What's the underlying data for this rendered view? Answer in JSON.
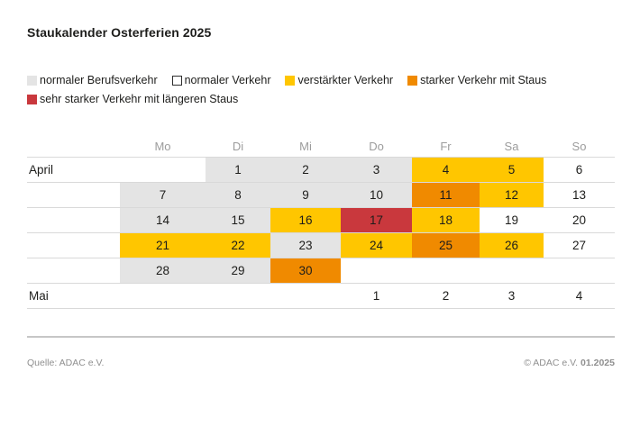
{
  "title": "Staukalender Osterferien 2025",
  "legend": {
    "items": [
      {
        "label": "normaler Berufsverkehr",
        "level": "normaler_berufsverkehr",
        "outlined": false
      },
      {
        "label": "normaler Verkehr",
        "level": "normaler_verkehr",
        "outlined": true
      },
      {
        "label": "verstärkter Verkehr",
        "level": "verstaerkter_verkehr",
        "outlined": false
      },
      {
        "label": "starker Verkehr mit Staus",
        "level": "starker_verkehr",
        "outlined": false
      },
      {
        "label": "sehr starker Verkehr mit längeren Staus",
        "level": "sehr_starker_verkehr",
        "outlined": false
      }
    ]
  },
  "chart_data": {
    "type": "heatmap",
    "title": "Staukalender Osterferien 2025",
    "legend_position": "top",
    "day_headers": [
      "Mo",
      "Di",
      "Mi",
      "Do",
      "Fr",
      "Sa",
      "So"
    ],
    "levels": {
      "normaler_berufsverkehr": "#e4e4e4",
      "normaler_verkehr": "#ffffff",
      "verstaerkter_verkehr": "#ffc600",
      "starker_verkehr": "#f08a00",
      "sehr_starker_verkehr": "#c9383d",
      "none": "none"
    },
    "rows": [
      {
        "label": "April",
        "cells": [
          {
            "day": "",
            "level": "none"
          },
          {
            "day": "1",
            "level": "normaler_berufsverkehr"
          },
          {
            "day": "2",
            "level": "normaler_berufsverkehr"
          },
          {
            "day": "3",
            "level": "normaler_berufsverkehr"
          },
          {
            "day": "4",
            "level": "verstaerkter_verkehr"
          },
          {
            "day": "5",
            "level": "verstaerkter_verkehr"
          },
          {
            "day": "6",
            "level": "normaler_verkehr"
          }
        ]
      },
      {
        "label": "",
        "cells": [
          {
            "day": "7",
            "level": "normaler_berufsverkehr"
          },
          {
            "day": "8",
            "level": "normaler_berufsverkehr"
          },
          {
            "day": "9",
            "level": "normaler_berufsverkehr"
          },
          {
            "day": "10",
            "level": "normaler_berufsverkehr"
          },
          {
            "day": "11",
            "level": "starker_verkehr"
          },
          {
            "day": "12",
            "level": "verstaerkter_verkehr"
          },
          {
            "day": "13",
            "level": "normaler_verkehr"
          }
        ]
      },
      {
        "label": "",
        "cells": [
          {
            "day": "14",
            "level": "normaler_berufsverkehr"
          },
          {
            "day": "15",
            "level": "normaler_berufsverkehr"
          },
          {
            "day": "16",
            "level": "verstaerkter_verkehr"
          },
          {
            "day": "17",
            "level": "sehr_starker_verkehr"
          },
          {
            "day": "18",
            "level": "verstaerkter_verkehr"
          },
          {
            "day": "19",
            "level": "normaler_verkehr"
          },
          {
            "day": "20",
            "level": "normaler_verkehr"
          }
        ]
      },
      {
        "label": "",
        "cells": [
          {
            "day": "21",
            "level": "verstaerkter_verkehr"
          },
          {
            "day": "22",
            "level": "verstaerkter_verkehr"
          },
          {
            "day": "23",
            "level": "normaler_berufsverkehr"
          },
          {
            "day": "24",
            "level": "verstaerkter_verkehr"
          },
          {
            "day": "25",
            "level": "starker_verkehr"
          },
          {
            "day": "26",
            "level": "verstaerkter_verkehr"
          },
          {
            "day": "27",
            "level": "normaler_verkehr"
          }
        ]
      },
      {
        "label": "",
        "cells": [
          {
            "day": "28",
            "level": "normaler_berufsverkehr"
          },
          {
            "day": "29",
            "level": "normaler_berufsverkehr"
          },
          {
            "day": "30",
            "level": "starker_verkehr"
          },
          {
            "day": "",
            "level": "none"
          },
          {
            "day": "",
            "level": "none"
          },
          {
            "day": "",
            "level": "none"
          },
          {
            "day": "",
            "level": "none"
          }
        ]
      },
      {
        "label": "Mai",
        "cells": [
          {
            "day": "",
            "level": "none"
          },
          {
            "day": "",
            "level": "none"
          },
          {
            "day": "",
            "level": "none"
          },
          {
            "day": "1",
            "level": "normaler_verkehr"
          },
          {
            "day": "2",
            "level": "normaler_verkehr"
          },
          {
            "day": "3",
            "level": "normaler_verkehr"
          },
          {
            "day": "4",
            "level": "normaler_verkehr"
          }
        ]
      }
    ]
  },
  "footer": {
    "source": "Quelle: ADAC e.V.",
    "copyright": "© ADAC e.V.",
    "date": "01.2025"
  }
}
